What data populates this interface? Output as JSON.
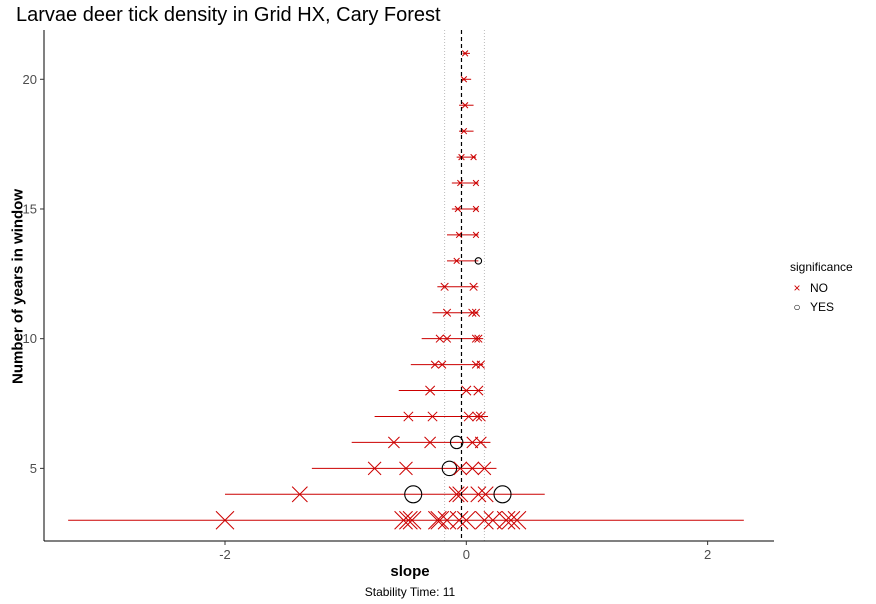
{
  "chart_data": {
    "type": "scatter",
    "title": "Larvae deer tick density in Grid HX, Cary Forest",
    "xlabel": "slope",
    "ylabel": "Number of years in window",
    "caption": "Stability Time: 11",
    "xlim": [
      -3.5,
      2.55
    ],
    "ylim": [
      2.2,
      21.9
    ],
    "xticks": [
      -2,
      0,
      2
    ],
    "yticks": [
      5,
      10,
      15,
      20
    ],
    "reference_line": -0.04,
    "stability_band": [
      -0.18,
      0.15
    ],
    "grid": false,
    "legend": {
      "title": "significance",
      "position": "right",
      "entries": [
        {
          "label": "NO",
          "marker": "x",
          "color": "#cc0000"
        },
        {
          "label": "YES",
          "marker": "circle",
          "color": "#000000"
        }
      ]
    },
    "windows": [
      {
        "n": 3,
        "lo": -3.3,
        "hi": 2.3,
        "points": [
          {
            "x": -2.0,
            "sig": "NO"
          },
          {
            "x": -0.52,
            "sig": "NO"
          },
          {
            "x": -0.48,
            "sig": "NO"
          },
          {
            "x": -0.45,
            "sig": "NO"
          },
          {
            "x": -0.24,
            "sig": "NO"
          },
          {
            "x": -0.22,
            "sig": "NO"
          },
          {
            "x": -0.16,
            "sig": "NO"
          },
          {
            "x": -0.06,
            "sig": "NO"
          },
          {
            "x": 0.0,
            "sig": "NO"
          },
          {
            "x": 0.15,
            "sig": "NO"
          },
          {
            "x": 0.22,
            "sig": "NO"
          },
          {
            "x": 0.33,
            "sig": "NO"
          },
          {
            "x": 0.37,
            "sig": "NO"
          },
          {
            "x": 0.42,
            "sig": "NO"
          }
        ]
      },
      {
        "n": 4,
        "lo": -2.0,
        "hi": 0.65,
        "points": [
          {
            "x": -1.38,
            "sig": "NO"
          },
          {
            "x": -0.44,
            "sig": "YES"
          },
          {
            "x": -0.08,
            "sig": "NO"
          },
          {
            "x": -0.05,
            "sig": "NO"
          },
          {
            "x": 0.1,
            "sig": "NO"
          },
          {
            "x": 0.16,
            "sig": "NO"
          },
          {
            "x": 0.3,
            "sig": "YES"
          }
        ]
      },
      {
        "n": 5,
        "lo": -1.28,
        "hi": 0.25,
        "points": [
          {
            "x": -0.76,
            "sig": "NO"
          },
          {
            "x": -0.5,
            "sig": "NO"
          },
          {
            "x": -0.14,
            "sig": "YES"
          },
          {
            "x": -0.05,
            "sig": "NO"
          },
          {
            "x": 0.05,
            "sig": "NO"
          },
          {
            "x": 0.15,
            "sig": "NO"
          }
        ]
      },
      {
        "n": 6,
        "lo": -0.95,
        "hi": 0.2,
        "points": [
          {
            "x": -0.6,
            "sig": "NO"
          },
          {
            "x": -0.3,
            "sig": "NO"
          },
          {
            "x": -0.08,
            "sig": "YES"
          },
          {
            "x": 0.05,
            "sig": "NO"
          },
          {
            "x": 0.12,
            "sig": "NO"
          }
        ]
      },
      {
        "n": 7,
        "lo": -0.76,
        "hi": 0.18,
        "points": [
          {
            "x": -0.48,
            "sig": "NO"
          },
          {
            "x": -0.28,
            "sig": "NO"
          },
          {
            "x": 0.02,
            "sig": "NO"
          },
          {
            "x": 0.09,
            "sig": "NO"
          },
          {
            "x": 0.12,
            "sig": "NO"
          }
        ]
      },
      {
        "n": 8,
        "lo": -0.56,
        "hi": 0.14,
        "points": [
          {
            "x": -0.3,
            "sig": "NO"
          },
          {
            "x": 0.0,
            "sig": "NO"
          },
          {
            "x": 0.1,
            "sig": "NO"
          }
        ]
      },
      {
        "n": 9,
        "lo": -0.46,
        "hi": 0.14,
        "points": [
          {
            "x": -0.26,
            "sig": "NO"
          },
          {
            "x": -0.2,
            "sig": "NO"
          },
          {
            "x": 0.08,
            "sig": "NO"
          },
          {
            "x": 0.12,
            "sig": "NO"
          }
        ]
      },
      {
        "n": 10,
        "lo": -0.37,
        "hi": 0.14,
        "points": [
          {
            "x": -0.22,
            "sig": "NO"
          },
          {
            "x": -0.16,
            "sig": "NO"
          },
          {
            "x": 0.08,
            "sig": "NO"
          },
          {
            "x": 0.1,
            "sig": "NO"
          }
        ]
      },
      {
        "n": 11,
        "lo": -0.28,
        "hi": 0.1,
        "points": [
          {
            "x": -0.16,
            "sig": "NO"
          },
          {
            "x": 0.05,
            "sig": "NO"
          },
          {
            "x": 0.08,
            "sig": "NO"
          }
        ]
      },
      {
        "n": 12,
        "lo": -0.24,
        "hi": 0.1,
        "points": [
          {
            "x": -0.18,
            "sig": "NO"
          },
          {
            "x": 0.06,
            "sig": "NO"
          }
        ]
      },
      {
        "n": 13,
        "lo": -0.16,
        "hi": 0.1,
        "points": [
          {
            "x": -0.08,
            "sig": "NO"
          },
          {
            "x": 0.1,
            "sig": "YES"
          }
        ]
      },
      {
        "n": 14,
        "lo": -0.16,
        "hi": 0.1,
        "points": [
          {
            "x": -0.06,
            "sig": "NO"
          },
          {
            "x": 0.08,
            "sig": "NO"
          }
        ]
      },
      {
        "n": 15,
        "lo": -0.12,
        "hi": 0.1,
        "points": [
          {
            "x": -0.07,
            "sig": "NO"
          },
          {
            "x": 0.08,
            "sig": "NO"
          }
        ]
      },
      {
        "n": 16,
        "lo": -0.12,
        "hi": 0.1,
        "points": [
          {
            "x": -0.05,
            "sig": "NO"
          },
          {
            "x": 0.08,
            "sig": "NO"
          }
        ]
      },
      {
        "n": 17,
        "lo": -0.08,
        "hi": 0.08,
        "points": [
          {
            "x": -0.04,
            "sig": "NO"
          },
          {
            "x": 0.06,
            "sig": "NO"
          }
        ]
      },
      {
        "n": 18,
        "lo": -0.06,
        "hi": 0.06,
        "points": [
          {
            "x": -0.02,
            "sig": "NO"
          }
        ]
      },
      {
        "n": 19,
        "lo": -0.06,
        "hi": 0.06,
        "points": [
          {
            "x": -0.01,
            "sig": "NO"
          }
        ]
      },
      {
        "n": 20,
        "lo": -0.04,
        "hi": 0.04,
        "points": [
          {
            "x": -0.02,
            "sig": "NO"
          }
        ]
      },
      {
        "n": 21,
        "lo": -0.03,
        "hi": 0.03,
        "points": [
          {
            "x": -0.01,
            "sig": "NO"
          }
        ]
      }
    ]
  }
}
